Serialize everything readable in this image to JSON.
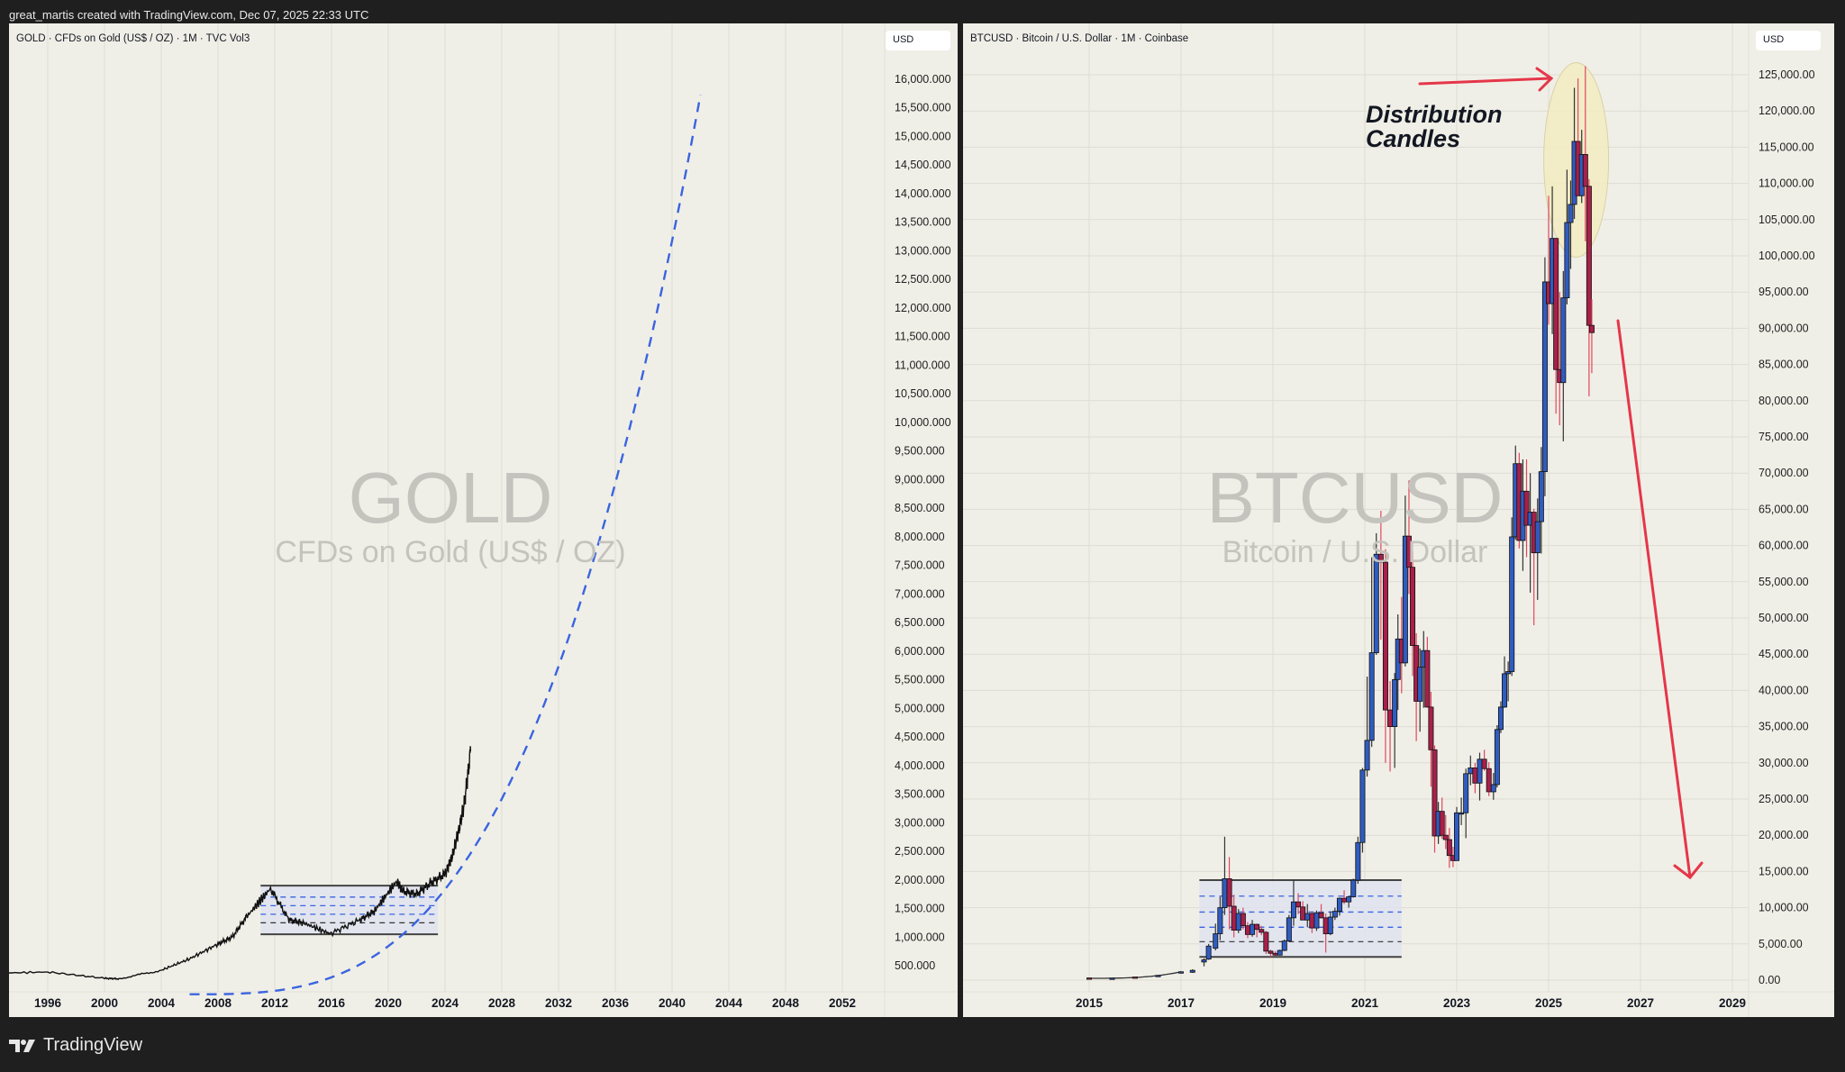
{
  "header": {
    "attribution": "great_martis created with TradingView.com, Dec 07, 2025 22:33 UTC"
  },
  "footer": {
    "brand": "TradingView",
    "logo_icon": "tradingview-logo-icon"
  },
  "colors": {
    "background": "#1f1f1f",
    "panel": "#f0efe7",
    "grid": "#dedcd3",
    "bull": "#2f5cc0",
    "bear": "#a8204a",
    "wick_bear": "#e0485e",
    "curve": "#3a64e0",
    "arrow": "#e5364a",
    "ellipse": "#f3ecc4",
    "range_fill": "#dfe3ef"
  },
  "gold": {
    "legend": "GOLD · CFDs on Gold (US$ / OZ) · 1M · TVC  Vol3",
    "currency": "USD",
    "watermark_symbol": "GOLD",
    "watermark_desc": "CFDs on Gold (US$ / OZ)"
  },
  "btc": {
    "legend": "BTCUSD · Bitcoin / U.S. Dollar · 1M · Coinbase",
    "currency": "USD",
    "watermark_symbol": "BTCUSD",
    "watermark_desc": "Bitcoin / U.S. Dollar",
    "annotation": [
      "Distribution",
      "Candles"
    ]
  },
  "chart_data": [
    {
      "type": "line",
      "title": "GOLD · CFDs on Gold (US$ / OZ) · 1M · TVC",
      "xlabel": "",
      "ylabel": "USD",
      "x_ticks": [
        "1996",
        "2000",
        "2004",
        "2008",
        "2012",
        "2016",
        "2020",
        "2024",
        "2028",
        "2032",
        "2036",
        "2040",
        "2044",
        "2048",
        "2052"
      ],
      "y_ticks": [
        "500.000",
        "1,000.000",
        "1,500.000",
        "2,000.000",
        "2,500.000",
        "3,000.000",
        "3,500.000",
        "4,000.000",
        "4,500.000",
        "5,000.000",
        "5,500.000",
        "6,000.000",
        "6,500.000",
        "7,000.000",
        "7,500.000",
        "8,000.000",
        "8,500.000",
        "9,000.000",
        "9,500.000",
        "10,000.000",
        "10,500.000",
        "11,000.000",
        "11,500.000",
        "12,000.000",
        "12,500.000",
        "13,000.000",
        "13,500.000",
        "14,000.000",
        "14,500.000",
        "15,000.000",
        "15,500.000",
        "16,000.000"
      ],
      "ylim": [
        0,
        16500
      ],
      "grid": true,
      "series": [
        {
          "name": "Gold monthly close",
          "x": [
            1991,
            1996,
            2000,
            2001,
            2004,
            2006,
            2008,
            2009,
            2010,
            2011.7,
            2013,
            2014,
            2015.9,
            2018,
            2019,
            2020.6,
            2021,
            2022,
            2023,
            2024,
            2024.5,
            2025,
            2025.4,
            2025.8
          ],
          "values": [
            360,
            390,
            280,
            270,
            420,
            620,
            880,
            1000,
            1350,
            1850,
            1300,
            1250,
            1060,
            1300,
            1450,
            1980,
            1800,
            1750,
            1950,
            2100,
            2400,
            2900,
            3400,
            4250
          ]
        },
        {
          "name": "Projected parabolic curve (dashed)",
          "x": [
            2006,
            2008,
            2012,
            2016,
            2020,
            2024,
            2028,
            2032,
            2036,
            2040,
            2042
          ],
          "values": [
            0,
            0,
            100,
            450,
            900,
            1800,
            3600,
            6500,
            10000,
            14500,
            16000
          ]
        }
      ],
      "annotations": [
        {
          "type": "range_box",
          "x": [
            2011,
            2023.5
          ],
          "y": [
            1050,
            1900
          ],
          "levels": [
            1250,
            1400,
            1550,
            1700
          ]
        }
      ]
    },
    {
      "type": "candlestick",
      "title": "BTCUSD · Bitcoin / U.S. Dollar · 1M · Coinbase",
      "xlabel": "",
      "ylabel": "USD",
      "x_ticks": [
        "2015",
        "2017",
        "2019",
        "2021",
        "2023",
        "2025",
        "2027",
        "2029"
      ],
      "y_ticks": [
        "0.00",
        "5,000.00",
        "10,000.00",
        "15,000.00",
        "20,000.00",
        "25,000.00",
        "30,000.00",
        "35,000.00",
        "40,000.00",
        "45,000.00",
        "50,000.00",
        "55,000.00",
        "60,000.00",
        "65,000.00",
        "70,000.00",
        "75,000.00",
        "80,000.00",
        "85,000.00",
        "90,000.00",
        "95,000.00",
        "100,000.00",
        "105,000.00",
        "110,000.00",
        "115,000.00",
        "120,000.00",
        "125,000.00"
      ],
      "ylim": [
        0,
        128000
      ],
      "grid": true,
      "candles": [
        [
          2015.0,
          300,
          320,
          200,
          250
        ],
        [
          2015.5,
          250,
          300,
          220,
          280
        ],
        [
          2016.0,
          430,
          460,
          380,
          420
        ],
        [
          2016.5,
          620,
          700,
          550,
          650
        ],
        [
          2017.0,
          960,
          1200,
          900,
          1150
        ],
        [
          2017.25,
          1080,
          1500,
          1000,
          1350
        ],
        [
          2017.5,
          2500,
          3000,
          1900,
          2800
        ],
        [
          2017.6,
          2900,
          5000,
          2800,
          4700
        ],
        [
          2017.75,
          4400,
          7800,
          4100,
          6400
        ],
        [
          2017.85,
          6400,
          11500,
          5500,
          10000
        ],
        [
          2017.95,
          10000,
          19800,
          9000,
          14000
        ],
        [
          2018.05,
          14000,
          17000,
          7000,
          10200
        ],
        [
          2018.15,
          10200,
          11800,
          5900,
          6900
        ],
        [
          2018.25,
          6900,
          9800,
          6500,
          9200
        ],
        [
          2018.35,
          9200,
          10000,
          7000,
          7500
        ],
        [
          2018.45,
          7500,
          8000,
          5800,
          6300
        ],
        [
          2018.55,
          6300,
          8300,
          6000,
          7700
        ],
        [
          2018.65,
          7700,
          7800,
          5900,
          7000
        ],
        [
          2018.75,
          7000,
          7500,
          6200,
          6600
        ],
        [
          2018.85,
          6600,
          6800,
          3600,
          4000
        ],
        [
          2018.95,
          4000,
          4200,
          3200,
          3700
        ],
        [
          2019.05,
          3700,
          4000,
          3300,
          3450
        ],
        [
          2019.15,
          3450,
          4200,
          3400,
          4100
        ],
        [
          2019.25,
          4100,
          5600,
          4000,
          5400
        ],
        [
          2019.35,
          5400,
          9000,
          5300,
          8600
        ],
        [
          2019.45,
          8600,
          13800,
          7500,
          10800
        ],
        [
          2019.55,
          10800,
          12000,
          9100,
          10100
        ],
        [
          2019.65,
          10100,
          10900,
          9400,
          8300
        ],
        [
          2019.75,
          8300,
          10500,
          7300,
          9200
        ],
        [
          2019.85,
          9200,
          9500,
          6500,
          7200
        ],
        [
          2019.95,
          7200,
          9600,
          6800,
          9300
        ],
        [
          2020.05,
          9300,
          10500,
          8500,
          8600
        ],
        [
          2020.15,
          8600,
          9200,
          3800,
          6400
        ],
        [
          2020.25,
          6400,
          9500,
          6200,
          8700
        ],
        [
          2020.35,
          8700,
          10000,
          8300,
          9500
        ],
        [
          2020.45,
          9500,
          11400,
          8900,
          11300
        ],
        [
          2020.55,
          11300,
          12400,
          10500,
          10800
        ],
        [
          2020.65,
          10800,
          11000,
          10000,
          11500
        ],
        [
          2020.75,
          11500,
          14000,
          11400,
          13800
        ],
        [
          2020.85,
          13800,
          19800,
          13300,
          19000
        ],
        [
          2020.95,
          19000,
          29300,
          17600,
          29000
        ],
        [
          2021.05,
          29000,
          41900,
          28100,
          33100
        ],
        [
          2021.15,
          33100,
          58400,
          32200,
          45200
        ],
        [
          2021.25,
          45200,
          61700,
          44900,
          58800
        ],
        [
          2021.35,
          58800,
          64800,
          47000,
          57700
        ],
        [
          2021.45,
          57700,
          59500,
          30000,
          37300
        ],
        [
          2021.55,
          37300,
          41300,
          28800,
          35000
        ],
        [
          2021.65,
          35000,
          42400,
          29300,
          41500
        ],
        [
          2021.72,
          41500,
          50500,
          37300,
          47100
        ],
        [
          2021.8,
          47100,
          52900,
          39600,
          43800
        ],
        [
          2021.88,
          43800,
          66900,
          43300,
          61300
        ],
        [
          2021.96,
          61300,
          69000,
          53300,
          57000
        ],
        [
          2022.04,
          57000,
          59200,
          42000,
          46200
        ],
        [
          2022.12,
          46200,
          47900,
          33000,
          38500
        ],
        [
          2022.2,
          38500,
          45800,
          34300,
          43200
        ],
        [
          2022.28,
          43200,
          48200,
          37600,
          45500
        ],
        [
          2022.36,
          45500,
          47400,
          37600,
          37700
        ],
        [
          2022.44,
          37700,
          39800,
          26700,
          31800
        ],
        [
          2022.52,
          31800,
          32400,
          17600,
          19900
        ],
        [
          2022.6,
          19900,
          24600,
          18800,
          23300
        ],
        [
          2022.68,
          23300,
          25200,
          19500,
          20000
        ],
        [
          2022.76,
          20000,
          22800,
          18100,
          19400
        ],
        [
          2022.84,
          19400,
          21000,
          15500,
          17200
        ],
        [
          2022.92,
          17200,
          18400,
          15600,
          16500
        ],
        [
          2023.0,
          16500,
          23900,
          16500,
          23100
        ],
        [
          2023.1,
          23100,
          25200,
          21400,
          23100
        ],
        [
          2023.2,
          23100,
          29200,
          19600,
          28500
        ],
        [
          2023.3,
          28500,
          31000,
          26900,
          29300
        ],
        [
          2023.4,
          29300,
          30000,
          25800,
          27200
        ],
        [
          2023.5,
          27200,
          31400,
          24800,
          30500
        ],
        [
          2023.6,
          30500,
          31800,
          28900,
          29200
        ],
        [
          2023.7,
          29200,
          30100,
          25400,
          26000
        ],
        [
          2023.8,
          26000,
          28600,
          24900,
          27000
        ],
        [
          2023.88,
          27000,
          35200,
          26600,
          34600
        ],
        [
          2023.96,
          34600,
          38500,
          34100,
          37700
        ],
        [
          2024.04,
          37700,
          44700,
          37600,
          42300
        ],
        [
          2024.12,
          42300,
          44000,
          38500,
          42600
        ],
        [
          2024.2,
          42600,
          63900,
          42000,
          61200
        ],
        [
          2024.28,
          61200,
          73800,
          60800,
          71300
        ],
        [
          2024.36,
          71300,
          72800,
          59600,
          60700
        ],
        [
          2024.44,
          60700,
          71900,
          56500,
          67500
        ],
        [
          2024.52,
          67500,
          71900,
          58400,
          62800
        ],
        [
          2024.6,
          62800,
          70000,
          53500,
          64600
        ],
        [
          2024.68,
          64600,
          65100,
          49000,
          59000
        ],
        [
          2024.76,
          59000,
          66500,
          52500,
          63300
        ],
        [
          2024.84,
          63300,
          73600,
          58900,
          70200
        ],
        [
          2024.92,
          70200,
          99800,
          66800,
          96400
        ],
        [
          2025.0,
          96400,
          108300,
          90500,
          93400
        ],
        [
          2025.08,
          93400,
          109600,
          89200,
          102400
        ],
        [
          2025.16,
          102400,
          102500,
          78200,
          84300
        ],
        [
          2025.24,
          84300,
          95000,
          76600,
          82500
        ],
        [
          2025.32,
          82500,
          97900,
          74400,
          94200
        ],
        [
          2025.4,
          94200,
          111900,
          93300,
          104600
        ],
        [
          2025.48,
          104600,
          110400,
          98200,
          107100
        ],
        [
          2025.56,
          107100,
          123200,
          105100,
          115800
        ],
        [
          2025.64,
          115800,
          124500,
          111900,
          108300
        ],
        [
          2025.72,
          108300,
          117400,
          107300,
          114000
        ],
        [
          2025.8,
          114000,
          126200,
          102000,
          109600
        ],
        [
          2025.88,
          109600,
          110600,
          80600,
          90400
        ],
        [
          2025.94,
          90400,
          94000,
          83800,
          89400
        ]
      ],
      "annotations": [
        {
          "type": "range_box",
          "x": [
            2017.4,
            2021.8
          ],
          "y": [
            3200,
            13800
          ],
          "levels": [
            5300,
            7300,
            9400,
            11600
          ]
        },
        {
          "type": "ellipse",
          "label": "Distribution Candles",
          "center": [
            2025.6,
            113000
          ]
        },
        {
          "type": "arrow",
          "direction": "right",
          "from": [
            2023.1,
            121000
          ],
          "to": [
            2025.4,
            122000
          ]
        },
        {
          "type": "arrow",
          "direction": "down",
          "from": [
            2026.3,
            90000
          ],
          "to": [
            2028.0,
            14000
          ]
        }
      ]
    }
  ]
}
